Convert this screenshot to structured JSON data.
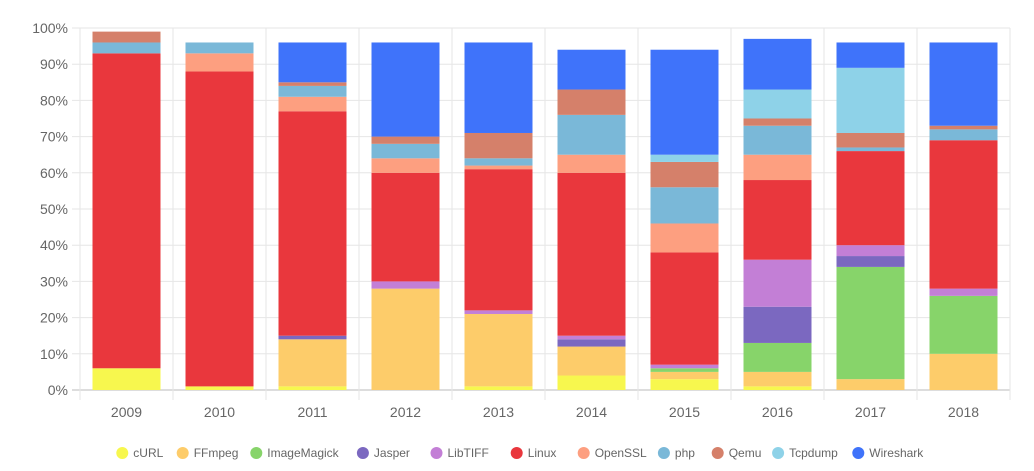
{
  "chart_data": {
    "type": "bar",
    "stacked": true,
    "categories": [
      "2009",
      "2010",
      "2011",
      "2012",
      "2013",
      "2014",
      "2015",
      "2016",
      "2017",
      "2018"
    ],
    "ylim": [
      0,
      100
    ],
    "yticks": [
      "0%",
      "10%",
      "20%",
      "30%",
      "40%",
      "50%",
      "60%",
      "70%",
      "80%",
      "90%",
      "100%"
    ],
    "grid": true,
    "legend_position": "bottom",
    "series": [
      {
        "name": "cURL",
        "color": "#f7f74e",
        "values": [
          6,
          1,
          1,
          0,
          1,
          4,
          3,
          1,
          0,
          0
        ]
      },
      {
        "name": "FFmpeg",
        "color": "#fdcc6a",
        "values": [
          0,
          0,
          13,
          28,
          20,
          8,
          2,
          4,
          3,
          10
        ]
      },
      {
        "name": "ImageMagick",
        "color": "#87d46a",
        "values": [
          0,
          0,
          0,
          0,
          0,
          0,
          1,
          8,
          31,
          16
        ]
      },
      {
        "name": "Jasper",
        "color": "#7b68c0",
        "values": [
          0,
          0,
          1,
          0,
          0,
          2,
          0,
          10,
          3,
          0
        ]
      },
      {
        "name": "LibTIFF",
        "color": "#c37fd6",
        "values": [
          0,
          0,
          0,
          2,
          1,
          1,
          1,
          13,
          3,
          2
        ]
      },
      {
        "name": "Linux",
        "color": "#e9373d",
        "values": [
          87,
          87,
          62,
          30,
          39,
          45,
          31,
          22,
          26,
          41
        ]
      },
      {
        "name": "OpenSSL",
        "color": "#fd9f80",
        "values": [
          0,
          5,
          4,
          4,
          1,
          5,
          8,
          7,
          0,
          0
        ]
      },
      {
        "name": "php",
        "color": "#7ab8d8",
        "values": [
          3,
          3,
          3,
          4,
          2,
          11,
          10,
          8,
          1,
          3
        ]
      },
      {
        "name": "Qemu",
        "color": "#d5806a",
        "values": [
          3,
          0,
          1,
          2,
          7,
          7,
          7,
          2,
          4,
          1
        ]
      },
      {
        "name": "Tcpdump",
        "color": "#8ed2e8",
        "values": [
          0,
          0,
          0,
          0,
          0,
          0,
          2,
          8,
          18,
          0
        ]
      },
      {
        "name": "Wireshark",
        "color": "#3f73fa",
        "values": [
          0,
          0,
          11,
          26,
          25,
          11,
          29,
          14,
          7,
          23
        ]
      }
    ]
  }
}
